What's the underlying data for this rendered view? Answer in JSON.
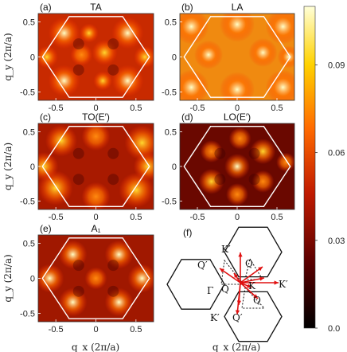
{
  "chart_data": {
    "type": "heatmap",
    "colorbar": {
      "ticks": [
        "0.09",
        "0.06",
        "0.03",
        "0.0"
      ],
      "tick_values": [
        0.09,
        0.06,
        0.03,
        0.0
      ],
      "range": [
        0,
        0.11
      ],
      "colors": [
        "#000000",
        "#5a0000",
        "#c01a00",
        "#ff6a00",
        "#ffd200",
        "#ffffd8"
      ]
    },
    "x_ticks": [
      "-0.5",
      "0",
      "0.5"
    ],
    "x_tick_values": [
      -0.5,
      0,
      0.5
    ],
    "y_ticks": [
      "0.5",
      "0",
      "-0.5"
    ],
    "y_tick_values": [
      0.5,
      0,
      -0.5
    ],
    "xlim": [
      -0.72,
      0.72
    ],
    "ylim": [
      -0.62,
      0.62
    ],
    "xlabel": "q_x (2π/a)",
    "ylabel": "q_y (2π/a)",
    "panels": [
      {
        "tag": "(a)",
        "title": "TA"
      },
      {
        "tag": "(b)",
        "title": "LA"
      },
      {
        "tag": "(c)",
        "title": "TO(E′)"
      },
      {
        "tag": "(d)",
        "title": "LO(E′)"
      },
      {
        "tag": "(e)",
        "title": "A₁"
      }
    ],
    "schematic": {
      "tag": "(f)",
      "labels": [
        "K′",
        "Q′",
        "Q",
        "Q",
        "K",
        "K′",
        "Γ",
        "Q",
        "K′",
        "Q′"
      ]
    }
  }
}
